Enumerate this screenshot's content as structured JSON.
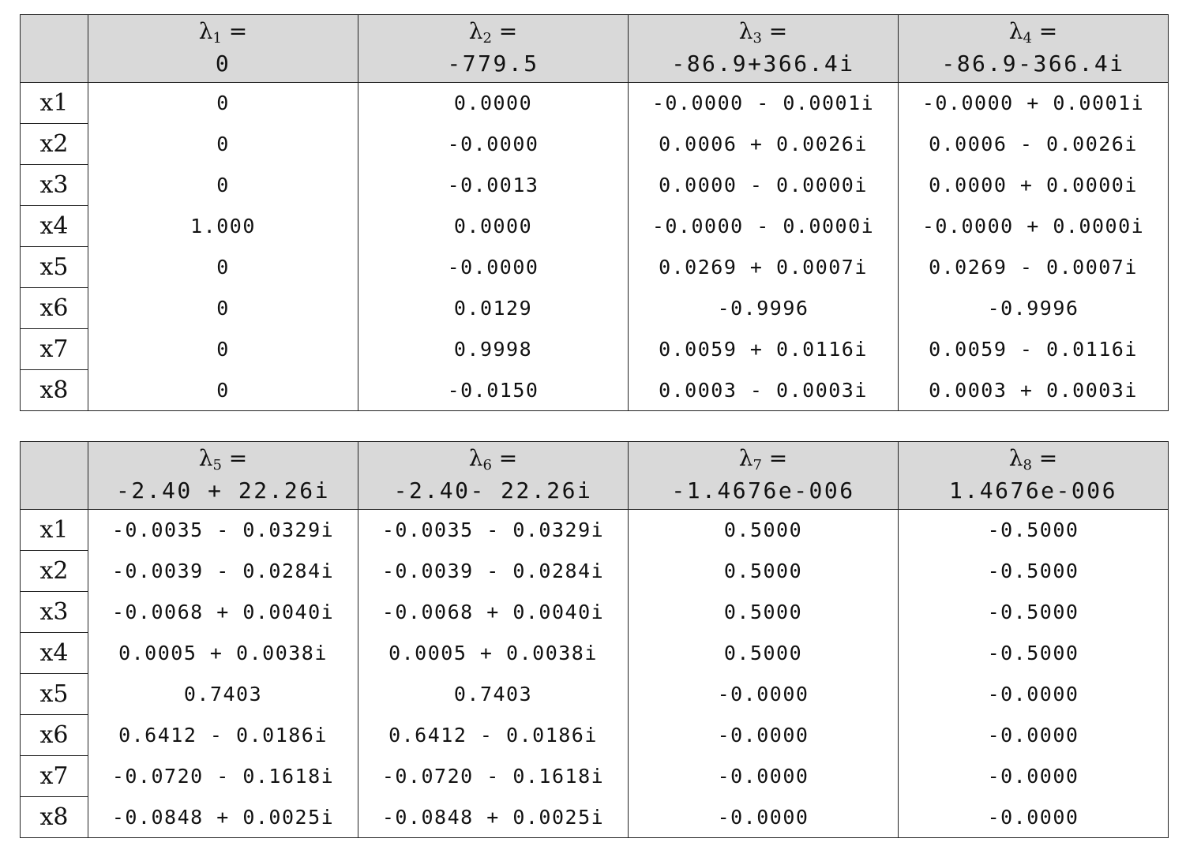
{
  "tables": [
    {
      "columns": [
        {
          "symbol": "λ",
          "sub": "1",
          "eq": " =",
          "value": "0"
        },
        {
          "symbol": "λ",
          "sub": "2",
          "eq": " =",
          "value": "-779.5"
        },
        {
          "symbol": "λ",
          "sub": "3",
          "eq": " =",
          "value": "-86.9+366.4i"
        },
        {
          "symbol": "λ",
          "sub": "4",
          "eq": " =",
          "value": "-86.9-366.4i"
        }
      ],
      "rows": [
        {
          "label": "x1",
          "cells": [
            "0",
            "0.0000",
            "-0.0000 - 0.0001i",
            "-0.0000 + 0.0001i"
          ]
        },
        {
          "label": "x2",
          "cells": [
            "0",
            "-0.0000",
            "0.0006 + 0.0026i",
            "0.0006 - 0.0026i"
          ]
        },
        {
          "label": "x3",
          "cells": [
            "0",
            "-0.0013",
            "0.0000 - 0.0000i",
            "0.0000 + 0.0000i"
          ]
        },
        {
          "label": "x4",
          "cells": [
            "1.000",
            "0.0000",
            "-0.0000 - 0.0000i",
            "-0.0000 + 0.0000i"
          ]
        },
        {
          "label": "x5",
          "cells": [
            "0",
            "-0.0000",
            "0.0269 + 0.0007i",
            "0.0269 - 0.0007i"
          ]
        },
        {
          "label": "x6",
          "cells": [
            "0",
            "0.0129",
            "-0.9996",
            "-0.9996"
          ]
        },
        {
          "label": "x7",
          "cells": [
            "0",
            "0.9998",
            "0.0059 + 0.0116i",
            "0.0059 - 0.0116i"
          ]
        },
        {
          "label": "x8",
          "cells": [
            "0",
            "-0.0150",
            "0.0003 - 0.0003i",
            "0.0003 + 0.0003i"
          ]
        }
      ]
    },
    {
      "columns": [
        {
          "symbol": "λ",
          "sub": "5",
          "eq": " =",
          "value": "-2.40 + 22.26i"
        },
        {
          "symbol": "λ",
          "sub": "6",
          "eq": " =",
          "value": "-2.40- 22.26i"
        },
        {
          "symbol": "λ",
          "sub": "7",
          "eq": " =",
          "value": "-1.4676e-006"
        },
        {
          "symbol": "λ",
          "sub": "8",
          "eq": " =",
          "value": "1.4676e-006"
        }
      ],
      "rows": [
        {
          "label": "x1",
          "cells": [
            "-0.0035 - 0.0329i",
            "-0.0035 - 0.0329i",
            "0.5000",
            "-0.5000"
          ]
        },
        {
          "label": "x2",
          "cells": [
            "-0.0039 - 0.0284i",
            "-0.0039 - 0.0284i",
            "0.5000",
            "-0.5000"
          ]
        },
        {
          "label": "x3",
          "cells": [
            "-0.0068 + 0.0040i",
            "-0.0068 + 0.0040i",
            "0.5000",
            "-0.5000"
          ]
        },
        {
          "label": "x4",
          "cells": [
            "0.0005 + 0.0038i",
            "0.0005 + 0.0038i",
            "0.5000",
            "-0.5000"
          ]
        },
        {
          "label": "x5",
          "cells": [
            "0.7403",
            "0.7403",
            "-0.0000",
            "-0.0000"
          ]
        },
        {
          "label": "x6",
          "cells": [
            "0.6412 - 0.0186i",
            "0.6412 - 0.0186i",
            "-0.0000",
            "-0.0000"
          ]
        },
        {
          "label": "x7",
          "cells": [
            "-0.0720 - 0.1618i",
            "-0.0720 - 0.1618i",
            "-0.0000",
            "-0.0000"
          ]
        },
        {
          "label": "x8",
          "cells": [
            "-0.0848 + 0.0025i",
            "-0.0848 + 0.0025i",
            "-0.0000",
            "-0.0000"
          ]
        }
      ]
    }
  ]
}
